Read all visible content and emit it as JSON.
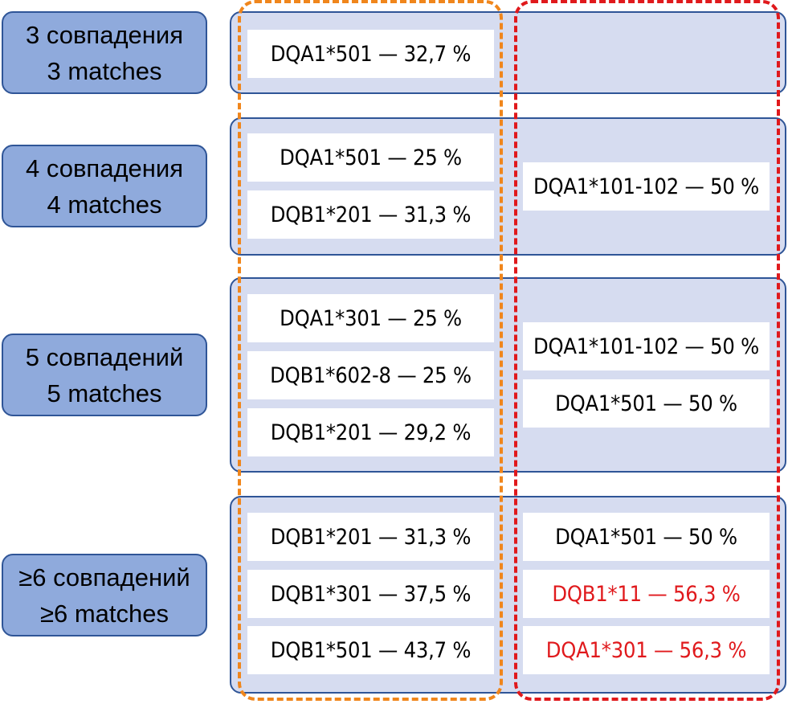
{
  "rows": [
    {
      "label_ru": "3 совпадения",
      "label_en": "3 matches",
      "group_a": [
        "DQA1*501 — 32,7 %"
      ],
      "group_b": []
    },
    {
      "label_ru": "4 совпадения",
      "label_en": "4 matches",
      "group_a": [
        "DQA1*501 — 25 %",
        "DQB1*201 — 31,3 %"
      ],
      "group_b": [
        "DQA1*101-102 — 50 %"
      ]
    },
    {
      "label_ru": "5 совпадений",
      "label_en": "5 matches",
      "group_a": [
        "DQA1*301 — 25 %",
        "DQB1*602-8 — 25 %",
        "DQB1*201 — 29,2 %"
      ],
      "group_b": [
        "DQA1*101-102 — 50 %",
        "DQA1*501 — 50 %"
      ]
    },
    {
      "label_ru": "≥6 совпадений",
      "label_en": "≥6 matches",
      "group_a": [
        "DQB1*201 — 31,3 %",
        "DQB1*301 — 37,5 %",
        "DQB1*501 — 43,7 %"
      ],
      "group_b": [
        "DQA1*501 — 50 %",
        "DQB1*11 — 56,3 %",
        "DQA1*301 — 56,3 %"
      ]
    }
  ],
  "colors": {
    "label_fill": "#8faadc",
    "panel_fill": "#d6dcf0",
    "border_blue": "#2f5597",
    "frame_orange": "#f0861c",
    "frame_red": "#e0191c",
    "highlight_text": "#e0191c"
  },
  "highlighted_cells": [
    "DQB1*11 — 56,3 %",
    "DQA1*301 — 56,3 %"
  ]
}
